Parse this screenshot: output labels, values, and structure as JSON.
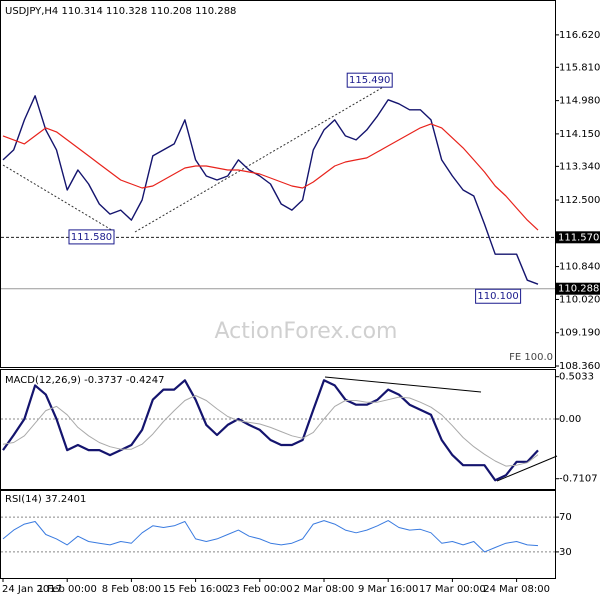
{
  "chart_data": [
    {
      "type": "line",
      "title": "USDJPY,H4  110.314 110.328 110.208 110.288",
      "watermark": "ActionForex.com",
      "note": "FE 100.0",
      "ylim": [
        108.31,
        117.49
      ],
      "yticks": [
        {
          "value": 116.62,
          "label": "116.620"
        },
        {
          "value": 115.81,
          "label": "115.810"
        },
        {
          "value": 114.98,
          "label": "114.980"
        },
        {
          "value": 114.15,
          "label": "114.150"
        },
        {
          "value": 113.34,
          "label": "113.340"
        },
        {
          "value": 112.5,
          "label": "112.500"
        },
        {
          "value": 110.84,
          "label": "110.840"
        },
        {
          "value": 110.02,
          "label": "110.020"
        },
        {
          "value": 109.19,
          "label": "109.190"
        },
        {
          "value": 108.36,
          "label": "108.360"
        }
      ],
      "hlines": [
        {
          "value": 111.57,
          "label": "111.570",
          "style": "dashed"
        },
        {
          "value": 110.288,
          "label": "110.288",
          "style": "solid"
        }
      ],
      "annotations": [
        {
          "label": "115.490",
          "value": 115.49,
          "index": 36
        },
        {
          "label": "111.580",
          "value": 111.58,
          "index": 10
        },
        {
          "label": "110.100",
          "value": 110.1,
          "index": 48
        }
      ],
      "series": [
        {
          "name": "USDJPY",
          "color": "#14146e",
          "width": 1.4,
          "values": [
            113.5,
            113.75,
            114.5,
            115.1,
            114.25,
            113.75,
            112.75,
            113.25,
            112.9,
            112.4,
            112.15,
            112.25,
            112.0,
            112.5,
            113.6,
            113.75,
            113.9,
            114.5,
            113.5,
            113.1,
            113.0,
            113.1,
            113.5,
            113.25,
            113.1,
            112.9,
            112.4,
            112.25,
            112.5,
            113.75,
            114.25,
            114.5,
            114.1,
            114.0,
            114.25,
            114.6,
            115.0,
            114.9,
            114.75,
            114.75,
            114.5,
            113.5,
            113.1,
            112.75,
            112.6,
            111.9,
            111.15,
            111.15,
            111.15,
            110.5,
            110.4
          ]
        },
        {
          "name": "MA",
          "color": "#e8231c",
          "width": 1.2,
          "values": [
            114.1,
            114.0,
            113.9,
            114.1,
            114.3,
            114.2,
            114.0,
            113.8,
            113.6,
            113.4,
            113.2,
            113.0,
            112.9,
            112.8,
            112.85,
            113.0,
            113.15,
            113.3,
            113.35,
            113.35,
            113.3,
            113.25,
            113.25,
            113.2,
            113.15,
            113.05,
            112.95,
            112.85,
            112.8,
            112.95,
            113.15,
            113.35,
            113.45,
            113.5,
            113.55,
            113.7,
            113.85,
            114.0,
            114.15,
            114.3,
            114.4,
            114.3,
            114.05,
            113.8,
            113.5,
            113.2,
            112.85,
            112.6,
            112.3,
            112.0,
            111.75
          ]
        }
      ]
    },
    {
      "type": "line",
      "title": "MACD(12,26,9) -0.3737 -0.4247",
      "ylim": [
        -0.845,
        0.583
      ],
      "zero_line": true,
      "yticks": [
        0.5033,
        {
          "value": 0,
          "label": "0.00"
        },
        -0.7107
      ],
      "series": [
        {
          "name": "MACD",
          "color": "#14146e",
          "width": 2.2,
          "values": [
            -0.37,
            -0.19,
            0.0,
            0.4,
            0.29,
            0.0,
            -0.37,
            -0.31,
            -0.37,
            -0.37,
            -0.43,
            -0.37,
            -0.31,
            -0.13,
            0.23,
            0.35,
            0.35,
            0.46,
            0.23,
            -0.07,
            -0.19,
            -0.07,
            0.0,
            -0.07,
            -0.13,
            -0.25,
            -0.31,
            -0.31,
            -0.25,
            0.11,
            0.46,
            0.4,
            0.23,
            0.17,
            0.17,
            0.23,
            0.35,
            0.29,
            0.17,
            0.11,
            0.05,
            -0.25,
            -0.43,
            -0.55,
            -0.55,
            -0.55,
            -0.73,
            -0.67,
            -0.51,
            -0.51,
            -0.3737
          ]
        },
        {
          "name": "Signal",
          "color": "#aaaaaa",
          "width": 1,
          "values": [
            -0.3,
            -0.28,
            -0.2,
            -0.05,
            0.1,
            0.15,
            0.05,
            -0.1,
            -0.2,
            -0.28,
            -0.33,
            -0.36,
            -0.36,
            -0.3,
            -0.18,
            -0.03,
            0.1,
            0.22,
            0.28,
            0.22,
            0.12,
            0.03,
            -0.02,
            -0.04,
            -0.06,
            -0.1,
            -0.15,
            -0.2,
            -0.23,
            -0.16,
            0.0,
            0.15,
            0.22,
            0.22,
            0.2,
            0.2,
            0.23,
            0.26,
            0.25,
            0.2,
            0.14,
            0.05,
            -0.08,
            -0.22,
            -0.33,
            -0.42,
            -0.5,
            -0.56,
            -0.55,
            -0.52,
            -0.4247
          ]
        }
      ]
    },
    {
      "type": "line",
      "title": "RSI(14) 37.2401",
      "ylim": [
        0,
        100
      ],
      "grid": true,
      "yticks": [
        70,
        30
      ],
      "categories": [
        "24 Jan 2017",
        null,
        null,
        null,
        null,
        null,
        "1 Feb 00:00",
        null,
        null,
        null,
        null,
        null,
        "8 Feb 08:00",
        null,
        null,
        null,
        null,
        null,
        "15 Feb 16:00",
        null,
        null,
        null,
        null,
        null,
        "23 Feb 00:00",
        null,
        null,
        null,
        null,
        null,
        "2 Mar 08:00",
        null,
        null,
        null,
        null,
        null,
        "9 Mar 16:00",
        null,
        null,
        null,
        null,
        null,
        "17 Mar 00:00",
        null,
        null,
        null,
        null,
        null,
        "24 Mar 08:00",
        null,
        null
      ],
      "series": [
        {
          "name": "RSI",
          "color": "#3a7be0",
          "width": 1,
          "values": [
            45,
            55,
            62,
            65,
            50,
            45,
            38,
            48,
            42,
            40,
            38,
            42,
            40,
            52,
            60,
            58,
            60,
            65,
            45,
            42,
            45,
            50,
            55,
            48,
            45,
            40,
            38,
            40,
            45,
            62,
            66,
            62,
            55,
            52,
            55,
            60,
            66,
            58,
            55,
            56,
            52,
            40,
            42,
            38,
            42,
            30,
            35,
            40,
            42,
            38,
            37.24
          ]
        }
      ]
    }
  ]
}
